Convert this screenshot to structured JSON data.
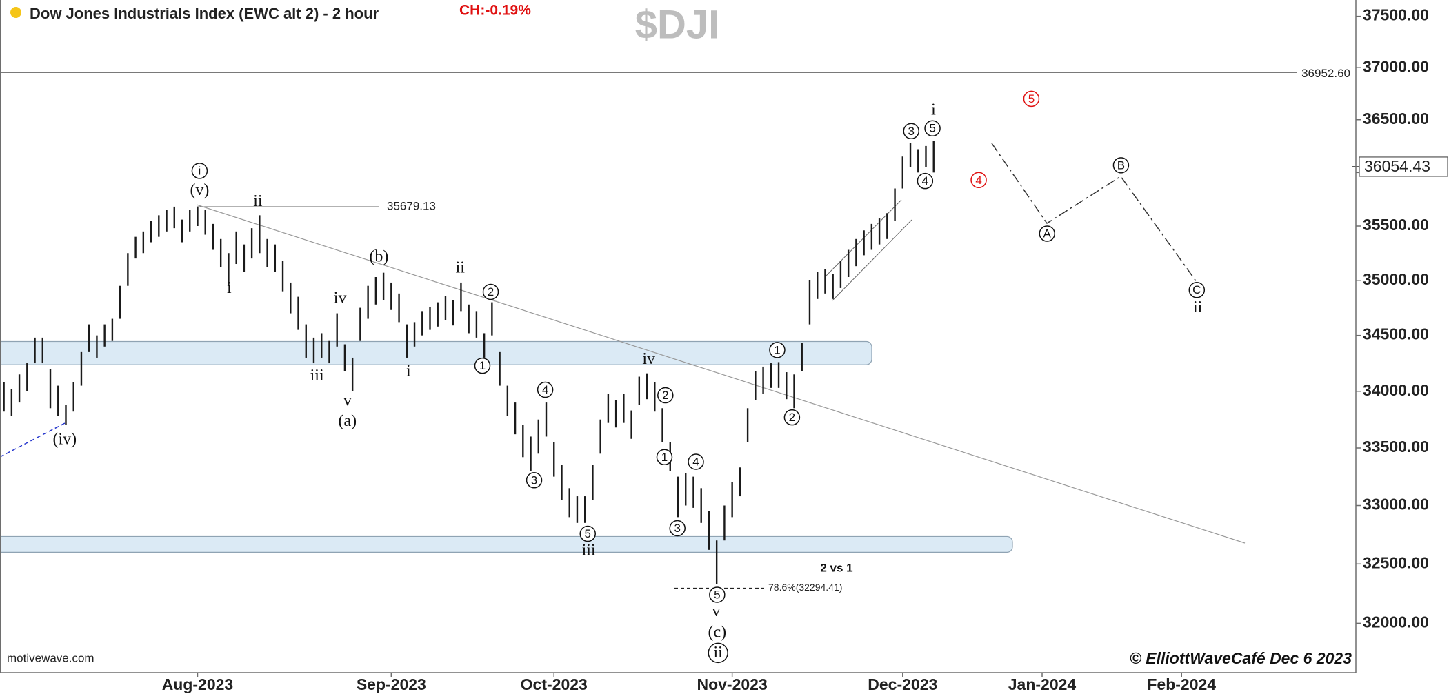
{
  "chart_data": {
    "type": "range",
    "title": "Dow Jones Industrials Index (EWC alt 2) - 2 hour",
    "change": "CH:-0.19%",
    "symbol": "$DJI",
    "source": "motivewave.com",
    "credit": "© ElliottWaveCafé Dec 6 2023",
    "note": "2 vs 1",
    "color": "#1a1a1a",
    "log_scale": true,
    "ylim": [
      31590,
      37660
    ],
    "yticks": [
      {
        "value": 32000,
        "label": "32000.00"
      },
      {
        "value": 32500,
        "label": "32500.00"
      },
      {
        "value": 33000,
        "label": "33000.00"
      },
      {
        "value": 33500,
        "label": "33500.00"
      },
      {
        "value": 34000,
        "label": "34000.00"
      },
      {
        "value": 34500,
        "label": "34500.00"
      },
      {
        "value": 35000,
        "label": "35000.00"
      },
      {
        "value": 35500,
        "label": "35500.00"
      },
      {
        "value": 36000,
        "label": "36000.00"
      },
      {
        "value": 36500,
        "label": "36500.00"
      },
      {
        "value": 37000,
        "label": "37000.00"
      },
      {
        "value": 37500,
        "label": "37500.00"
      }
    ],
    "last_price": {
      "value": 36054.43,
      "label": "36054.43"
    },
    "levels": [
      {
        "value": 36952.6,
        "label": "36952.60"
      },
      {
        "value": 35679.13,
        "label": "35679.13"
      },
      {
        "value": 32294.41,
        "label": "78.6%(32294.41)"
      }
    ],
    "zones": [
      {
        "low": 34237,
        "high": 34445
      },
      {
        "low": 32599,
        "high": 32734
      }
    ],
    "zone_color": "#dbeaf5",
    "categories": [
      null,
      null,
      null,
      null,
      null,
      null,
      null,
      null,
      null,
      null,
      null,
      null,
      null,
      null,
      null,
      null,
      null,
      null,
      null,
      null,
      null,
      null,
      null,
      null,
      null,
      "Aug-2023",
      null,
      null,
      null,
      null,
      null,
      null,
      null,
      null,
      null,
      null,
      null,
      null,
      null,
      null,
      null,
      null,
      null,
      null,
      null,
      null,
      null,
      null,
      null,
      null,
      "Sep-2023",
      null,
      null,
      null,
      null,
      null,
      null,
      null,
      null,
      null,
      null,
      null,
      null,
      null,
      null,
      null,
      null,
      null,
      null,
      null,
      null,
      "Oct-2023",
      null,
      null,
      null,
      null,
      null,
      null,
      null,
      null,
      null,
      null,
      null,
      null,
      null,
      null,
      null,
      null,
      null,
      null,
      null,
      null,
      null,
      null,
      "Nov-2023",
      null,
      null,
      null,
      null,
      null,
      null,
      null,
      null,
      null,
      null,
      null,
      null,
      null,
      null,
      null,
      null,
      null,
      null,
      null,
      null,
      null,
      "Dec-2023",
      null,
      null,
      null,
      null,
      null,
      null,
      null,
      null,
      null,
      null,
      null,
      null,
      null,
      null,
      null,
      null,
      null,
      "Jan-2024",
      null,
      null,
      null,
      null,
      null,
      null,
      null,
      null,
      null,
      null,
      null,
      null,
      null,
      null,
      null,
      null,
      null,
      "Feb-2024",
      null,
      null,
      null,
      null,
      null,
      null,
      null,
      null,
      null,
      null,
      null,
      null,
      null,
      null,
      null,
      null,
      null,
      null,
      null,
      null,
      null,
      null
    ],
    "low": [
      33820,
      33780,
      33900,
      34000,
      34250,
      34250,
      33850,
      33780,
      33700,
      33820,
      34050,
      34350,
      34300,
      34400,
      34450,
      34650,
      34950,
      35200,
      35250,
      35350,
      35400,
      35450,
      35480,
      35350,
      35450,
      35500,
      35420,
      35280,
      35120,
      34950,
      35150,
      35080,
      35200,
      35250,
      35120,
      35080,
      34900,
      34700,
      34550,
      34300,
      34250,
      34300,
      34250,
      34400,
      34180,
      34000,
      34450,
      34650,
      34780,
      34820,
      34730,
      34620,
      34300,
      34400,
      34500,
      34550,
      34580,
      34640,
      34590,
      34720,
      34520,
      34480,
      34300,
      34500,
      34050,
      33780,
      33620,
      33420,
      33300,
      33450,
      33600,
      33250,
      33050,
      32900,
      32850,
      32850,
      33050,
      33450,
      33720,
      33680,
      33720,
      33580,
      33880,
      33930,
      33820,
      33550,
      33300,
      32900,
      33000,
      32980,
      32850,
      32620,
      32330,
      32700,
      32900,
      33080,
      33550,
      33920,
      33980,
      34030,
      34030,
      33930,
      33850,
      34180,
      34600,
      34830,
      34880,
      34830,
      34930,
      35030,
      35130,
      35230,
      35280,
      35330,
      35380,
      35550,
      35850,
      36050,
      36000,
      36050,
      36000,
      null,
      null,
      null,
      null,
      null,
      null,
      null,
      null,
      null,
      null,
      null,
      null,
      null,
      null,
      null,
      null,
      null,
      null,
      null,
      null,
      null,
      null,
      null,
      null,
      null,
      null,
      null,
      null,
      null,
      null,
      null,
      null,
      null,
      null,
      null,
      null,
      null,
      null,
      null,
      null,
      null,
      null,
      null,
      null,
      null,
      null,
      null,
      null,
      null,
      null,
      null,
      null,
      null,
      null
    ],
    "high": [
      34080,
      34020,
      34150,
      34250,
      34480,
      34480,
      34200,
      34050,
      33880,
      34080,
      34350,
      34600,
      34500,
      34600,
      34650,
      34950,
      35250,
      35400,
      35450,
      35550,
      35600,
      35650,
      35680,
      35560,
      35650,
      35680,
      35650,
      35520,
      35380,
      35250,
      35450,
      35330,
      35480,
      35600,
      35380,
      35330,
      35180,
      34980,
      34850,
      34600,
      34480,
      34520,
      34450,
      34700,
      34420,
      34300,
      34750,
      34950,
      35030,
      35070,
      34980,
      34880,
      34600,
      34620,
      34720,
      34760,
      34800,
      34860,
      34820,
      34980,
      34780,
      34720,
      34520,
      34800,
      34350,
      34050,
      33900,
      33700,
      33600,
      33750,
      33900,
      33550,
      33350,
      33150,
      33080,
      33080,
      33350,
      33750,
      33980,
      33920,
      33980,
      33830,
      34130,
      34160,
      34080,
      33850,
      33550,
      33250,
      33280,
      33250,
      33150,
      32950,
      32700,
      33000,
      33200,
      33330,
      33850,
      34180,
      34220,
      34250,
      34260,
      34170,
      34150,
      34430,
      35000,
      35080,
      35100,
      35060,
      35180,
      35280,
      35380,
      35460,
      35520,
      35570,
      35620,
      35850,
      36150,
      36280,
      36220,
      36250,
      36300,
      null,
      null,
      null,
      null,
      null,
      null,
      null,
      null,
      null,
      null,
      null,
      null,
      null,
      null,
      null,
      null,
      null,
      null,
      null,
      null,
      null,
      null,
      null,
      null,
      null,
      null,
      null,
      null,
      null,
      null,
      null,
      null,
      null,
      null,
      null,
      null,
      null,
      null,
      null,
      null,
      null,
      null,
      null,
      null,
      null,
      null,
      null,
      null,
      null,
      null,
      null,
      null,
      null,
      null
    ],
    "wave_labels": [
      {
        "text": "i",
        "circled": true
      },
      {
        "text": "(v)"
      },
      {
        "text": "ii"
      },
      {
        "text": "i"
      },
      {
        "text": "iii"
      },
      {
        "text": "iv"
      },
      {
        "text": "v"
      },
      {
        "text": "(a)"
      },
      {
        "text": "(b)"
      },
      {
        "text": "i"
      },
      {
        "text": "ii"
      },
      {
        "text": "2",
        "circled": true
      },
      {
        "text": "1",
        "circled": true
      },
      {
        "text": "3",
        "circled": true
      },
      {
        "text": "4",
        "circled": true
      },
      {
        "text": "5",
        "circled": true
      },
      {
        "text": "iii"
      },
      {
        "text": "iv"
      },
      {
        "text": "2",
        "circled": true
      },
      {
        "text": "1",
        "circled": true
      },
      {
        "text": "4",
        "circled": true
      },
      {
        "text": "3",
        "circled": true
      },
      {
        "text": "5",
        "circled": true
      },
      {
        "text": "v"
      },
      {
        "text": "(c)"
      },
      {
        "text": "ii",
        "circled": true
      },
      {
        "text": "(iv)"
      },
      {
        "text": "1",
        "circled": true
      },
      {
        "text": "2",
        "circled": true
      },
      {
        "text": "3",
        "circled": true
      },
      {
        "text": "4",
        "circled": true
      },
      {
        "text": "5",
        "circled": true
      },
      {
        "text": "i"
      },
      {
        "text": "4",
        "circled": true,
        "color": "#e01010"
      },
      {
        "text": "5",
        "circled": true,
        "color": "#e01010"
      },
      {
        "text": "A",
        "circled": true
      },
      {
        "text": "B",
        "circled": true
      },
      {
        "text": "C",
        "circled": true
      },
      {
        "text": "ii"
      }
    ]
  }
}
